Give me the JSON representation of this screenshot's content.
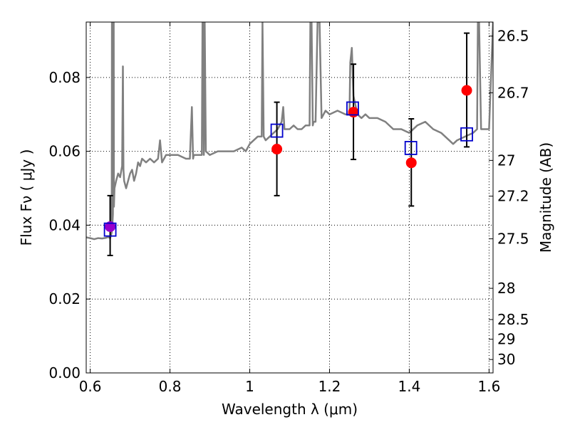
{
  "chart_data": {
    "type": "scatter",
    "xlabel": "Wavelength  λ (μm)",
    "ylabel": "Flux  Fν  ( μJy )",
    "ylabel_right": "Magnitude (AB)",
    "xlim": [
      0.59,
      1.61
    ],
    "ylim": [
      0.0,
      0.095
    ],
    "grid": true,
    "x_ticks": [
      {
        "value": 0.6,
        "label": "0.6"
      },
      {
        "value": 0.8,
        "label": "0.8"
      },
      {
        "value": 1.0,
        "label": "1"
      },
      {
        "value": 1.2,
        "label": "1.2"
      },
      {
        "value": 1.4,
        "label": "1.4"
      },
      {
        "value": 1.6,
        "label": "1.6"
      }
    ],
    "y_ticks": [
      {
        "value": 0.0,
        "label": "0.00"
      },
      {
        "value": 0.02,
        "label": "0.02"
      },
      {
        "value": 0.04,
        "label": "0.04"
      },
      {
        "value": 0.06,
        "label": "0.06"
      },
      {
        "value": 0.08,
        "label": "0.08"
      }
    ],
    "right_ticks": [
      {
        "mag": 26.5,
        "label": "26.5"
      },
      {
        "mag": 26.7,
        "label": "26.7"
      },
      {
        "mag": 27.0,
        "label": "27"
      },
      {
        "mag": 27.2,
        "label": "27.2"
      },
      {
        "mag": 27.5,
        "label": "27.5"
      },
      {
        "mag": 28.0,
        "label": "28"
      },
      {
        "mag": 28.5,
        "label": "28.5"
      },
      {
        "mag": 29.0,
        "label": "29"
      },
      {
        "mag": 30.0,
        "label": "30"
      }
    ],
    "colors": {
      "spectrum": "#808080",
      "observed": "#ff0000",
      "observed_first": "#9900cc",
      "model": "#0000cc",
      "errorbar": "#000000",
      "grid": "#000000"
    },
    "series": [
      {
        "kind": "spectrum",
        "x": [
          0.59,
          0.6,
          0.61,
          0.62,
          0.63,
          0.64,
          0.645,
          0.65,
          0.654,
          0.6545,
          0.655,
          0.6555,
          0.657,
          0.6585,
          0.659,
          0.6595,
          0.661,
          0.665,
          0.67,
          0.675,
          0.68,
          0.682,
          0.6835,
          0.685,
          0.69,
          0.695,
          0.7,
          0.705,
          0.71,
          0.715,
          0.72,
          0.725,
          0.73,
          0.74,
          0.75,
          0.76,
          0.77,
          0.775,
          0.78,
          0.785,
          0.79,
          0.8,
          0.82,
          0.84,
          0.85,
          0.855,
          0.858,
          0.86,
          0.87,
          0.88,
          0.8815,
          0.883,
          0.885,
          0.887,
          0.89,
          0.9,
          0.92,
          0.94,
          0.96,
          0.98,
          0.99,
          1.0,
          1.01,
          1.02,
          1.03,
          1.032,
          1.035,
          1.04,
          1.05,
          1.06,
          1.07,
          1.08,
          1.084,
          1.087,
          1.09,
          1.1,
          1.11,
          1.12,
          1.13,
          1.14,
          1.15,
          1.152,
          1.155,
          1.158,
          1.16,
          1.165,
          1.17,
          1.175,
          1.18,
          1.19,
          1.2,
          1.22,
          1.24,
          1.25,
          1.252,
          1.256,
          1.26,
          1.27,
          1.28,
          1.29,
          1.3,
          1.32,
          1.34,
          1.36,
          1.38,
          1.4,
          1.42,
          1.44,
          1.46,
          1.48,
          1.5,
          1.51,
          1.52,
          1.54,
          1.56,
          1.57,
          1.572,
          1.575,
          1.58,
          1.59,
          1.6,
          1.61
        ],
        "y": [
          0.0367,
          0.0365,
          0.0362,
          0.0365,
          0.0364,
          0.0366,
          0.0368,
          0.0365,
          0.038,
          0.095,
          0.095,
          0.04,
          0.043,
          0.095,
          0.095,
          0.045,
          0.05,
          0.052,
          0.054,
          0.053,
          0.056,
          0.083,
          0.055,
          0.052,
          0.05,
          0.052,
          0.054,
          0.055,
          0.052,
          0.054,
          0.057,
          0.056,
          0.058,
          0.057,
          0.058,
          0.057,
          0.058,
          0.063,
          0.057,
          0.058,
          0.059,
          0.059,
          0.059,
          0.058,
          0.058,
          0.072,
          0.058,
          0.059,
          0.059,
          0.059,
          0.095,
          0.095,
          0.059,
          0.095,
          0.06,
          0.059,
          0.06,
          0.06,
          0.06,
          0.061,
          0.06,
          0.062,
          0.063,
          0.064,
          0.064,
          0.095,
          0.064,
          0.063,
          0.064,
          0.065,
          0.066,
          0.068,
          0.072,
          0.066,
          0.066,
          0.066,
          0.067,
          0.066,
          0.066,
          0.067,
          0.067,
          0.095,
          0.095,
          0.067,
          0.068,
          0.068,
          0.095,
          0.095,
          0.069,
          0.071,
          0.07,
          0.071,
          0.07,
          0.07,
          0.084,
          0.088,
          0.075,
          0.07,
          0.069,
          0.07,
          0.069,
          0.069,
          0.068,
          0.066,
          0.066,
          0.065,
          0.067,
          0.068,
          0.066,
          0.065,
          0.063,
          0.062,
          0.063,
          0.064,
          0.065,
          0.066,
          0.095,
          0.095,
          0.066,
          0.066,
          0.066,
          0.095
        ]
      },
      {
        "kind": "observed",
        "points": [
          {
            "x": 0.65,
            "y": 0.0396,
            "err_low": 0.0318,
            "err_high": 0.048
          },
          {
            "x": 1.068,
            "y": 0.0606,
            "err_low": 0.048,
            "err_high": 0.0733
          },
          {
            "x": 1.26,
            "y": 0.0706,
            "err_low": 0.0578,
            "err_high": 0.0836
          },
          {
            "x": 1.405,
            "y": 0.0569,
            "err_low": 0.0452,
            "err_high": 0.0688
          },
          {
            "x": 1.544,
            "y": 0.0765,
            "err_low": 0.0612,
            "err_high": 0.092
          }
        ]
      },
      {
        "kind": "model",
        "points": [
          {
            "x": 0.65,
            "y": 0.0388
          },
          {
            "x": 1.068,
            "y": 0.0656
          },
          {
            "x": 1.258,
            "y": 0.0716
          },
          {
            "x": 1.404,
            "y": 0.0609
          },
          {
            "x": 1.544,
            "y": 0.0646
          }
        ]
      }
    ]
  }
}
